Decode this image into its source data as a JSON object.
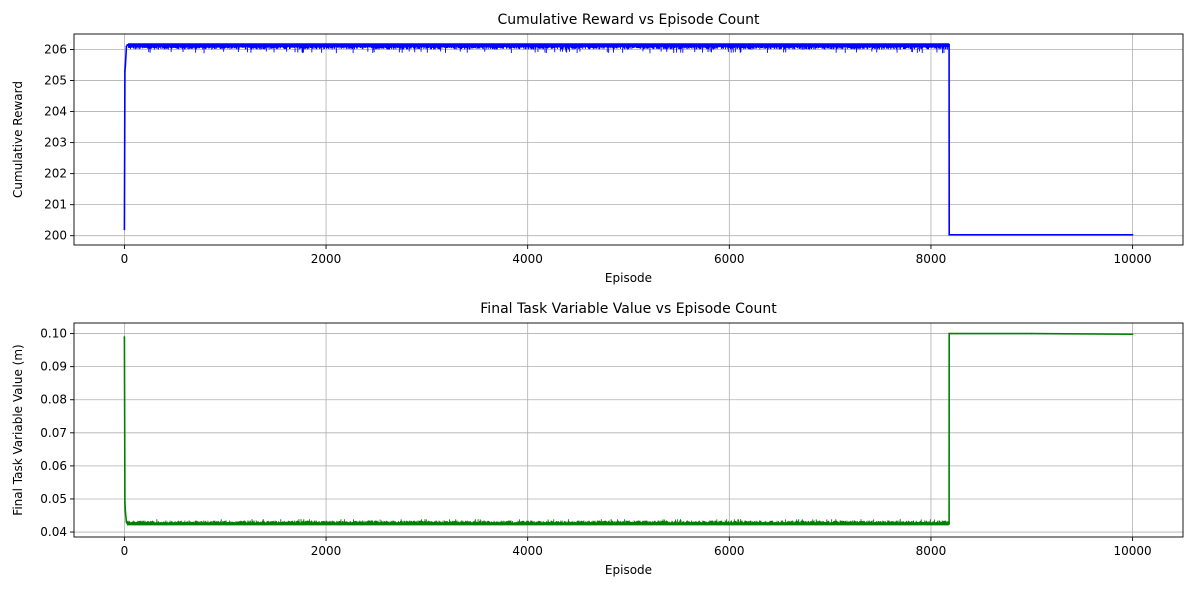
{
  "chart_data": [
    {
      "type": "line",
      "title": "Cumulative Reward vs Episode Count",
      "xlabel": "Episode",
      "ylabel": "Cumulative Reward",
      "xlim": [
        -500,
        10500
      ],
      "ylim": [
        199.7,
        206.5
      ],
      "xticks": [
        0,
        2000,
        4000,
        6000,
        8000,
        10000
      ],
      "yticks": [
        200,
        201,
        202,
        203,
        204,
        205,
        206
      ],
      "grid": true,
      "series": [
        {
          "color": "#0000ff",
          "x": [
            0,
            5,
            10,
            20,
            30,
            40,
            50,
            2000,
            4000,
            5200,
            6000,
            8000,
            8180,
            8181,
            9000,
            10000
          ],
          "y": [
            200.2,
            205.3,
            205.5,
            206.1,
            206.15,
            206.15,
            206.15,
            206.15,
            206.15,
            206.15,
            206.15,
            206.15,
            206.15,
            200.03,
            200.03,
            200.03
          ],
          "band": {
            "x_start": 40,
            "x_end": 8180,
            "low": 205.8,
            "high": 206.2,
            "typical_low": 206.0
          }
        }
      ]
    },
    {
      "type": "line",
      "title": "Final Task Variable Value vs Episode Count",
      "xlabel": "Episode",
      "ylabel": "Final Task Variable Value (m)",
      "xlim": [
        -500,
        10500
      ],
      "ylim": [
        0.0385,
        0.1032
      ],
      "xticks": [
        0,
        2000,
        4000,
        6000,
        8000,
        10000
      ],
      "yticks": [
        0.04,
        0.05,
        0.06,
        0.07,
        0.08,
        0.09,
        0.1
      ],
      "grid": true,
      "series": [
        {
          "color": "#008000",
          "x": [
            0,
            5,
            10,
            20,
            30,
            40,
            2000,
            4000,
            5900,
            6000,
            8000,
            8180,
            8181,
            9000,
            10000
          ],
          "y": [
            0.099,
            0.049,
            0.046,
            0.043,
            0.0425,
            0.0425,
            0.0425,
            0.0425,
            0.0425,
            0.0425,
            0.0425,
            0.0425,
            0.1,
            0.1,
            0.0998
          ],
          "band": {
            "x_start": 30,
            "x_end": 8180,
            "low": 0.042,
            "high": 0.0445,
            "typical_high": 0.0435
          }
        }
      ]
    }
  ]
}
